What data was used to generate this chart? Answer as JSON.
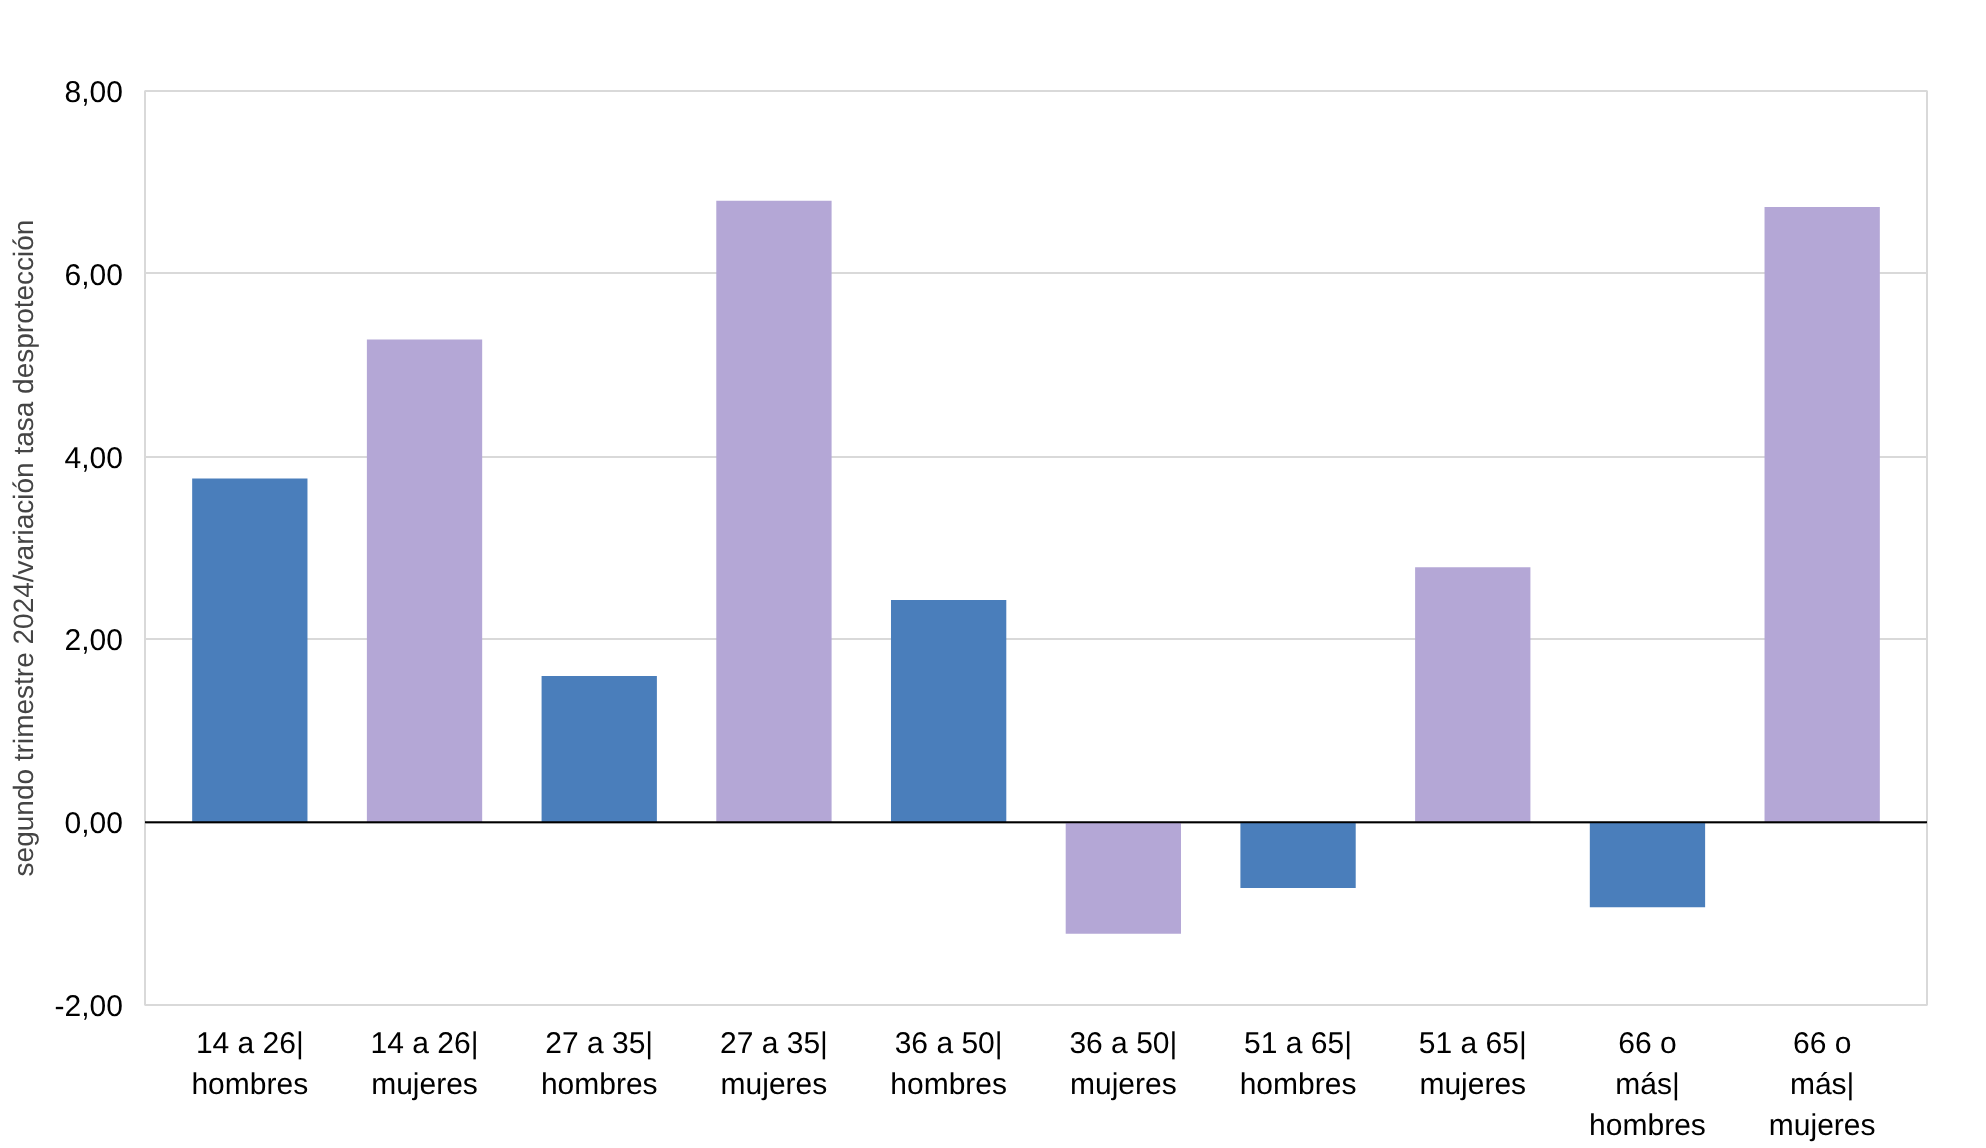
{
  "chart_data": {
    "type": "bar",
    "ylabel": "segundo trimestre 2024/variación tasa desprotección",
    "categories": [
      "14 a 26| hombres",
      "14 a 26| mujeres",
      "27 a 35| hombres",
      "27 a 35| mujeres",
      "36 a 50| hombres",
      "36 a 50| mujeres",
      "51 a 65| hombres",
      "51 a 65| mujeres",
      "66 o más| hombres",
      "66 o más| mujeres"
    ],
    "values": [
      3.76,
      5.28,
      1.6,
      6.8,
      2.43,
      -1.22,
      -0.72,
      2.79,
      -0.93,
      6.73
    ],
    "colors": [
      "#4a7ebb",
      "#b4a7d6",
      "#4a7ebb",
      "#b4a7d6",
      "#4a7ebb",
      "#b4a7d6",
      "#4a7ebb",
      "#b4a7d6",
      "#4a7ebb",
      "#b4a7d6"
    ],
    "ylim": [
      -2,
      8
    ],
    "yticks": [
      {
        "value": -2,
        "label": "-2,00"
      },
      {
        "value": 0,
        "label": "0,00"
      },
      {
        "value": 2,
        "label": "2,00"
      },
      {
        "value": 4,
        "label": "4,00"
      },
      {
        "value": 6,
        "label": "6,00"
      },
      {
        "value": 8,
        "label": "8,00"
      }
    ],
    "grid": "y"
  }
}
